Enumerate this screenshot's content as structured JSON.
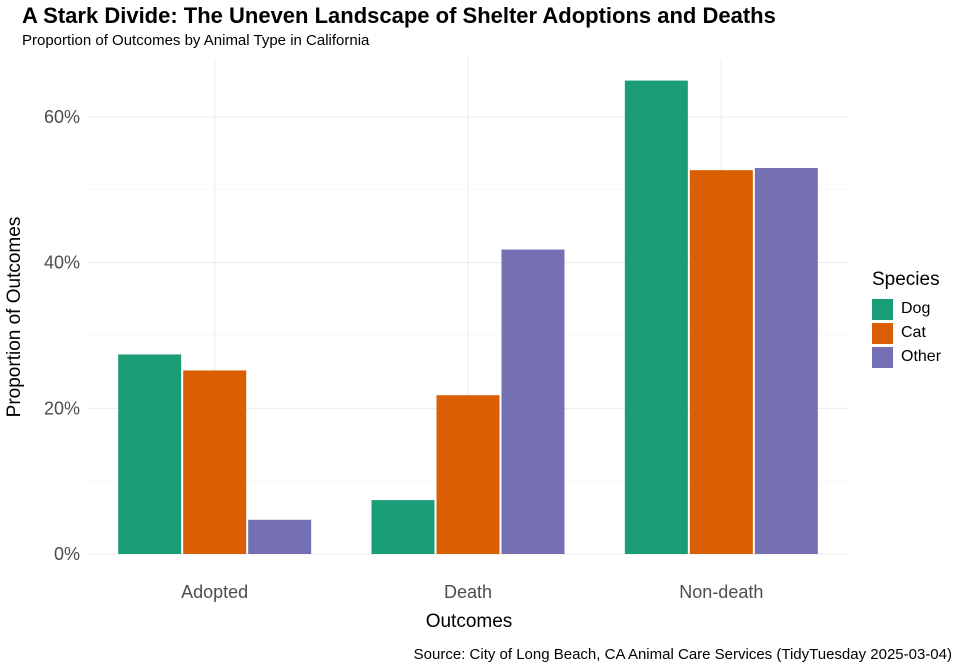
{
  "title": "A Stark Divide: The Uneven Landscape of Shelter Adoptions and Deaths",
  "subtitle": "Proportion of Outcomes by Animal Type in California",
  "caption": "Source: City of Long Beach, CA Animal Care Services (TidyTuesday 2025-03-04)",
  "chart_data": {
    "type": "bar",
    "title": "A Stark Divide: The Uneven Landscape of Shelter Adoptions and Deaths",
    "subtitle": "Proportion of Outcomes by Animal Type in California",
    "xlabel": "Outcomes",
    "ylabel": "Proportion of Outcomes",
    "categories": [
      "Adopted",
      "Death",
      "Non-death"
    ],
    "series": [
      {
        "name": "Dog",
        "color": "#1b9e77",
        "values": [
          0.274,
          0.074,
          0.65
        ]
      },
      {
        "name": "Cat",
        "color": "#d95f02",
        "values": [
          0.252,
          0.218,
          0.527
        ]
      },
      {
        "name": "Other",
        "color": "#7570b3",
        "values": [
          0.047,
          0.418,
          0.53
        ]
      }
    ],
    "ylim": [
      0,
      0.65
    ],
    "yticks": [
      0,
      0.2,
      0.4,
      0.6
    ],
    "ytick_labels": [
      "0%",
      "20%",
      "40%",
      "60%"
    ],
    "legend_title": "Species",
    "legend_position": "right",
    "grid": true
  }
}
